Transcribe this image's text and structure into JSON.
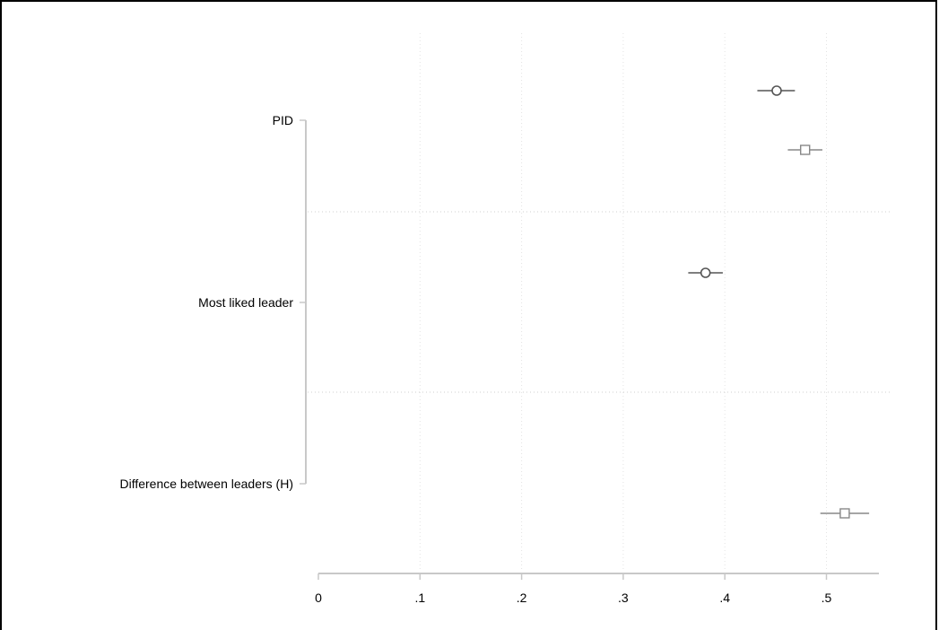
{
  "chart_data": {
    "type": "scatter",
    "subtype": "coefficient-plot",
    "title": "",
    "xlabel": "",
    "ylabel": "",
    "xlim": [
      0,
      0.55
    ],
    "x_ticks": [
      {
        "value": 0,
        "label": "0"
      },
      {
        "value": 0.1,
        "label": ".1"
      },
      {
        "value": 0.2,
        "label": ".2"
      },
      {
        "value": 0.3,
        "label": ".3"
      },
      {
        "value": 0.4,
        "label": ".4"
      },
      {
        "value": 0.5,
        "label": ".5"
      }
    ],
    "categories": [
      "PID",
      "Most liked leader",
      "Difference between leaders (H)"
    ],
    "grid": {
      "vertical": true,
      "horizontal_separators": true,
      "style": "dotted"
    },
    "legend": "none",
    "series": [
      {
        "marker": "circle",
        "color": "#555555",
        "points": [
          {
            "category": "PID",
            "value": 0.451,
            "ci_low": 0.432,
            "ci_high": 0.469
          },
          {
            "category": "Most liked leader",
            "value": 0.381,
            "ci_low": 0.364,
            "ci_high": 0.398
          }
        ]
      },
      {
        "marker": "square",
        "color": "#888888",
        "points": [
          {
            "category": "PID",
            "value": 0.479,
            "ci_low": 0.462,
            "ci_high": 0.496
          },
          {
            "category": "Difference between leaders (H)",
            "value": 0.518,
            "ci_low": 0.494,
            "ci_high": 0.542
          }
        ]
      }
    ]
  }
}
